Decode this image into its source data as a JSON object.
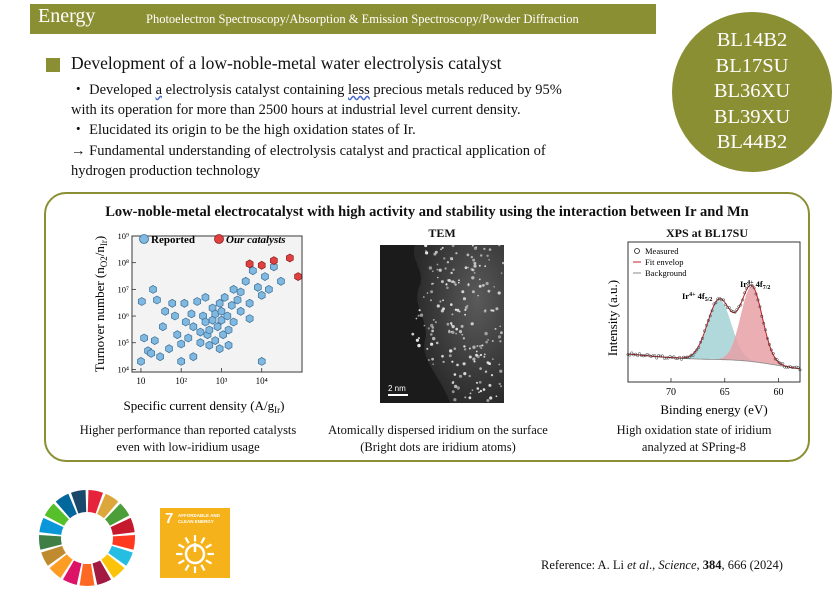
{
  "header": {
    "title": "Energy",
    "subtitle": "Photoelectron Spectroscopy/Absorption & Emission Spectroscopy/Powder Diffraction"
  },
  "beamlines": [
    "BL14B2",
    "BL17SU",
    "BL36XU",
    "BL39XU",
    "BL44B2"
  ],
  "headline": "Development of a low-noble-metal water electrolysis catalyst",
  "bullets": {
    "b1_prefix": "・ Developed ",
    "b1_a": "a",
    "b1_mid": " electrolysis catalyst containing ",
    "b1_less": "less",
    "b1_suffix": " precious metals reduced by 95%",
    "b1_line2": "with its operation for more than 2500 hours at industrial level current density.",
    "b2": "・ Elucidated its origin to be the high oxidation states of Ir.",
    "b3_line1": "→  Fundamental understanding of electrolysis catalyst and practical application of",
    "b3_line2": "hydrogen production technology"
  },
  "box": {
    "title": "Low-noble-metal electrocatalyst with high activity and stability using the interaction between Ir and Mn"
  },
  "scatter": {
    "legend_reported": "Reported",
    "legend_ours": "Our catalysts",
    "xlabel": "Specific current density (A/g",
    "xlabel_sub": "Ir",
    "xlabel_end": ")",
    "ylabel": "Turnover number (n",
    "ylabel_sub1": "O2",
    "ylabel_mid": "/n",
    "ylabel_sub2": "Ir",
    "ylabel_end": ")",
    "caption_1": "Higher performance than reported catalysts",
    "caption_2": "even with low-iridium usage"
  },
  "tem": {
    "title": "TEM",
    "scalebar": "2 nm",
    "caption_1": "Atomically dispersed iridium on the surface",
    "caption_2": "(Bright dots are iridium atoms)"
  },
  "xps": {
    "title": "XPS at BL17SU",
    "legend_measured": "Measured",
    "legend_fit": "Fit envelop",
    "legend_bg": "Background",
    "peak_ir4": "Ir",
    "peak_ir4_sup": "4+",
    "peak_ir4_tail": " 4f",
    "peak_ir4_sub": "5/2",
    "peak_ir4b_sub": "7/2",
    "ylabel": "Intensity (a.u.)",
    "xlabel": "Binding energy (eV)",
    "caption_1": "High oxidation state of iridium",
    "caption_2": "analyzed at SPring-8",
    "accent_green": "#a9d4d6",
    "accent_red": "#e8a0a6"
  },
  "sdg": {
    "goal_number": "7",
    "goal_text_1": "AFFORDABLE AND",
    "goal_text_2": "CLEAN ENERGY"
  },
  "reference": {
    "prefix": "Reference: A. Li ",
    "etal": "et al",
    "mid": "., ",
    "journal": "Science",
    "sep": ", ",
    "volume": "384",
    "pages": ", 666 (2024)"
  },
  "chart_data": [
    {
      "type": "scatter",
      "xlabel": "Specific current density (A/gIr)",
      "ylabel": "Turnover number (nO2/nIr)",
      "x_scale": "log",
      "y_scale": "log",
      "xlim": [
        6,
        100000
      ],
      "ylim": [
        8000,
        1000000000
      ],
      "x_ticks": [
        "10",
        "10²",
        "10³",
        "10⁴"
      ],
      "y_ticks": [
        "10⁴",
        "10⁵",
        "10⁶",
        "10⁷",
        "10⁸",
        "10⁹"
      ],
      "legend_placement": "top",
      "series": [
        {
          "name": "Reported",
          "color": "#7fb8e0",
          "points": [
            [
              10,
              20000
            ],
            [
              10.5,
              3500000
            ],
            [
              12,
              150000
            ],
            [
              15,
              50000
            ],
            [
              18,
              40000
            ],
            [
              20,
              10000000
            ],
            [
              22,
              120000
            ],
            [
              25,
              4000000
            ],
            [
              30,
              30000
            ],
            [
              35,
              400000
            ],
            [
              40,
              1500000
            ],
            [
              50,
              60000
            ],
            [
              60,
              3000000
            ],
            [
              70,
              1000000
            ],
            [
              80,
              200000
            ],
            [
              100,
              90000
            ],
            [
              100,
              20000
            ],
            [
              120,
              3000000
            ],
            [
              130,
              600000
            ],
            [
              150,
              150000
            ],
            [
              180,
              1200000
            ],
            [
              200,
              400000
            ],
            [
              200,
              30000
            ],
            [
              250,
              3500000
            ],
            [
              300,
              100000
            ],
            [
              300,
              250000
            ],
            [
              350,
              1000000
            ],
            [
              400,
              600000
            ],
            [
              400,
              5000000
            ],
            [
              450,
              200000
            ],
            [
              500,
              80000
            ],
            [
              500,
              300000
            ],
            [
              600,
              2000000
            ],
            [
              600,
              700000
            ],
            [
              700,
              120000
            ],
            [
              700,
              1200000
            ],
            [
              800,
              400000
            ],
            [
              900,
              60000
            ],
            [
              900,
              3000000
            ],
            [
              1000,
              700000
            ],
            [
              1000,
              1500000
            ],
            [
              1100,
              200000
            ],
            [
              1200,
              5000000
            ],
            [
              1400,
              1000000
            ],
            [
              1500,
              80000
            ],
            [
              1500,
              300000
            ],
            [
              1800,
              2500000
            ],
            [
              2000,
              10000000
            ],
            [
              2000,
              600000
            ],
            [
              2500,
              4000000
            ],
            [
              3000,
              8000000
            ],
            [
              3000,
              1500000
            ],
            [
              4000,
              20000000
            ],
            [
              5000,
              3000000
            ],
            [
              5000,
              800000
            ],
            [
              6000,
              50000000
            ],
            [
              8000,
              12000000
            ],
            [
              10000,
              6000000
            ],
            [
              10000,
              20000
            ],
            [
              12000,
              30000000
            ],
            [
              15000,
              10000000
            ],
            [
              20000,
              70000000
            ],
            [
              30000,
              20000000
            ]
          ]
        },
        {
          "name": "Our catalysts",
          "color": "#e04040",
          "points": [
            [
              10000,
              80000000
            ],
            [
              20000,
              120000000
            ],
            [
              50000,
              150000000
            ],
            [
              80000,
              30000000
            ],
            [
              5000,
              90000000
            ]
          ]
        }
      ]
    },
    {
      "type": "line",
      "title": "XPS at BL17SU",
      "xlabel": "Binding energy (eV)",
      "ylabel": "Intensity (a.u.)",
      "x_reversed": true,
      "xlim": [
        74,
        58
      ],
      "x_ticks": [
        70,
        65,
        60
      ],
      "series": [
        {
          "name": "Measured"
        },
        {
          "name": "Fit envelop"
        },
        {
          "name": "Background"
        }
      ],
      "peaks": [
        {
          "label": "Ir4+ 4f5/2",
          "x": 65.5
        },
        {
          "label": "Ir4+ 4f7/2",
          "x": 62.5
        }
      ]
    }
  ]
}
